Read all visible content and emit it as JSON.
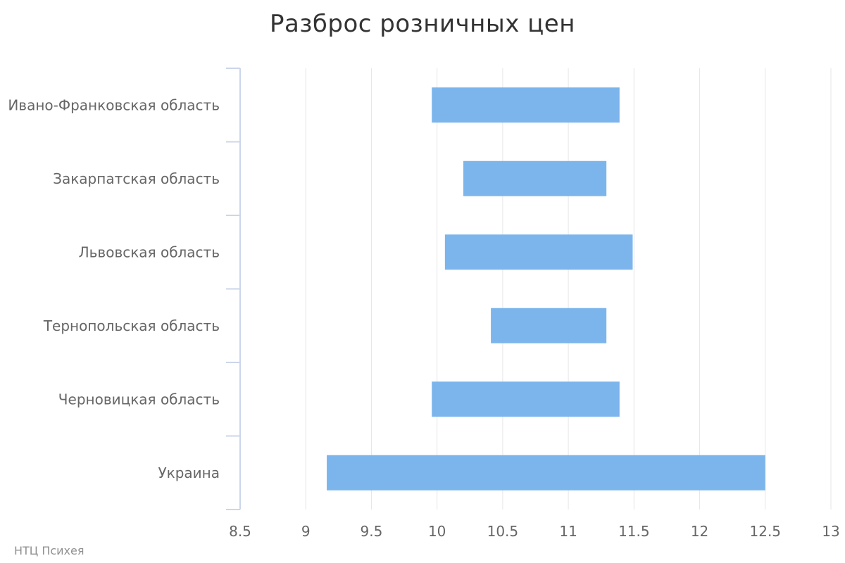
{
  "chart_data": {
    "type": "bar",
    "orientation": "horizontal",
    "subtype": "columnrange",
    "title": "Разброс розничных цен",
    "categories": [
      "Ивано-Франковская область",
      "Закарпатская область",
      "Львовская область",
      "Тернопольская область",
      "Черновицкая область",
      "Украина"
    ],
    "series": [
      {
        "ranges": [
          [
            9.96,
            11.39
          ],
          [
            10.2,
            11.29
          ],
          [
            10.06,
            11.49
          ],
          [
            10.41,
            11.29
          ],
          [
            9.96,
            11.39
          ],
          [
            9.16,
            12.5
          ]
        ],
        "color": "#7cb5ec"
      }
    ],
    "xlim": [
      8.5,
      13
    ],
    "ticks": [
      "8.5",
      "9",
      "9.5",
      "10",
      "10.5",
      "11",
      "11.5",
      "12",
      "12.5",
      "13"
    ],
    "grid": true,
    "legend": "none"
  },
  "credit": "НТЦ Психея",
  "colors": {
    "bar": "#7cb5ec",
    "grid": "#e6e6e6",
    "axis": "#ccd6eb",
    "label": "#666666",
    "title": "#333333"
  }
}
